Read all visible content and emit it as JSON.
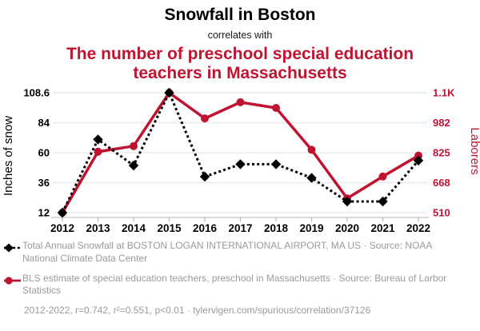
{
  "header": {
    "title": "Snowfall in Boston",
    "connector": "correlates with",
    "subtitle": "The number of preschool special education teachers in Massachusetts"
  },
  "colors": {
    "accent": "#C01330",
    "text": "#000000",
    "muted": "#9a9a9a",
    "gridline": "#e8e8e8",
    "axis_line": "#b3b3b3"
  },
  "chart_data": {
    "type": "line",
    "x": [
      2012,
      2013,
      2014,
      2015,
      2016,
      2017,
      2018,
      2019,
      2020,
      2021,
      2022
    ],
    "series": [
      {
        "name": "Total Annual Snowfall at BOSTON LOGAN INTERNATIONAL AIRPORT, MA US",
        "axis": "left",
        "color": "#000000",
        "style": "dashed-line-diamond-markers",
        "values": [
          12,
          71,
          50,
          108.6,
          41,
          51,
          51,
          40,
          21,
          21,
          54
        ]
      },
      {
        "name": "BLS estimate of special education teachers, preschool in Massachusetts",
        "axis": "right",
        "color": "#C01330",
        "style": "solid-line-circle-markers",
        "values": [
          510,
          830,
          860,
          1140,
          1005,
          1090,
          1060,
          840,
          585,
          700,
          810
        ]
      }
    ],
    "left_axis": {
      "label": "Inches of snow",
      "min": 12,
      "max": 108.6,
      "tick_labels": [
        "12",
        "36",
        "60",
        "84",
        "108.6"
      ]
    },
    "right_axis": {
      "label": "Laborers",
      "min": 510,
      "max": 1140,
      "tick_labels": [
        "510",
        "668",
        "825",
        "982",
        "1.1K"
      ]
    },
    "grid": true,
    "legend_position": "bottom"
  },
  "legend": {
    "snowfall": "Total Annual Snowfall at BOSTON LOGAN INTERNATIONAL AIRPORT, MA US · Source: NOAA National Climate Data Center",
    "teachers": "BLS estimate of special education teachers, preschool in Massachusetts · Source: Bureau of Larbor Statistics"
  },
  "footer": {
    "stats": "2012-2022, r=0.742, r²=0.551, p<0.01 · tylervigen.com/spurious/correlation/37126"
  }
}
